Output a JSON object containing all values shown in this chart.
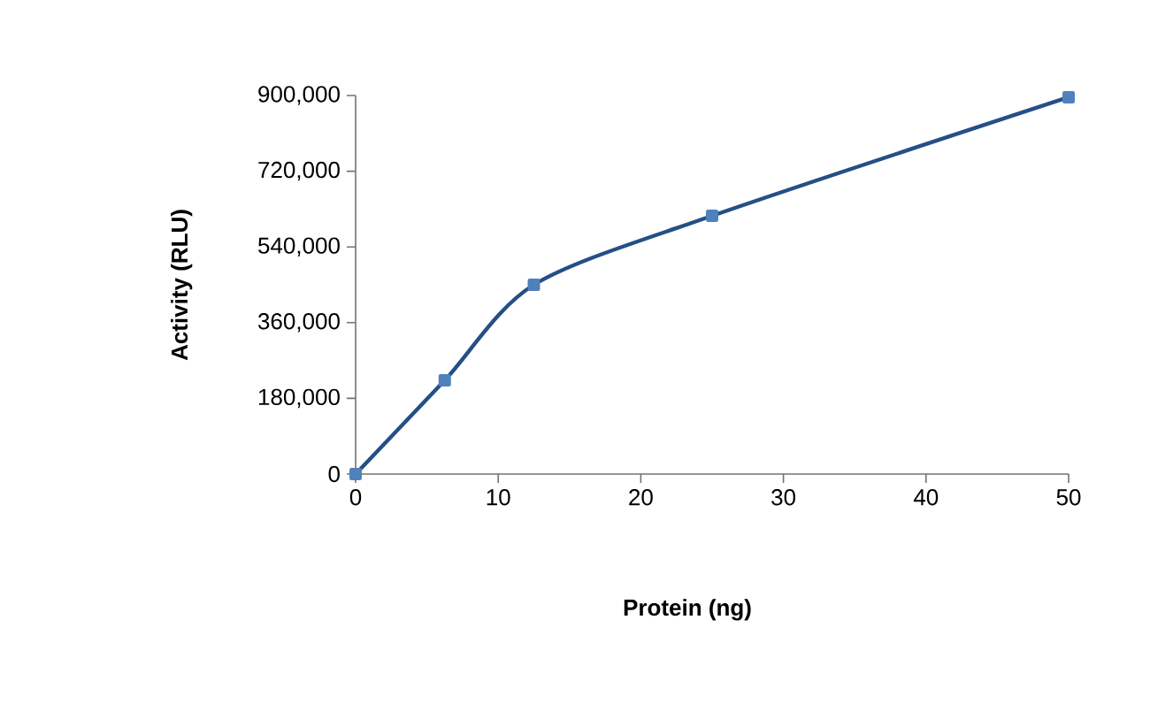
{
  "chart_data": {
    "type": "line",
    "xlabel": "Protein (ng)",
    "ylabel": "Activity (RLU)",
    "x": [
      0,
      6.25,
      12.5,
      25,
      50
    ],
    "series": [
      {
        "color": "#254f86",
        "values": [
          0,
          223000,
          450000,
          614000,
          896000
        ]
      }
    ],
    "marker": "square",
    "grid": false,
    "xlim": [
      0,
      50
    ],
    "ylim": [
      0,
      900000
    ],
    "xticks": [
      0,
      10,
      20,
      30,
      40,
      50
    ],
    "yticks": [
      {
        "value": 0,
        "label": "0"
      },
      {
        "value": 180000,
        "label": "180,000"
      },
      {
        "value": 360000,
        "label": "360,000"
      },
      {
        "value": 540000,
        "label": "540,000"
      },
      {
        "value": 720000,
        "label": "720,000"
      },
      {
        "value": 900000,
        "label": "900,000"
      }
    ]
  }
}
